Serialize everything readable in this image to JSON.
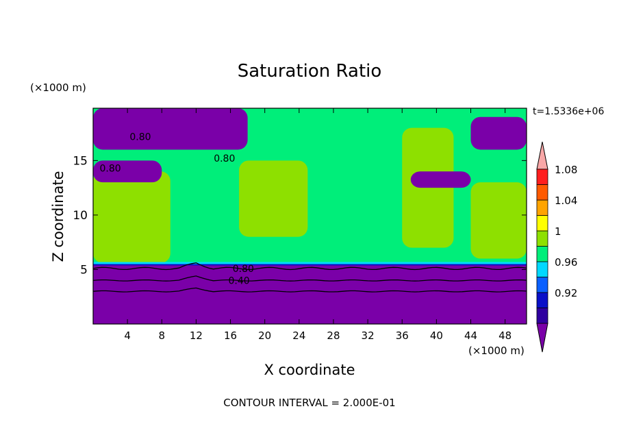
{
  "chart_data": {
    "type": "heatmap",
    "title": "Saturation Ratio",
    "xlabel": "X coordinate",
    "ylabel": "Z coordinate",
    "x_unit": "(×1000 m)",
    "y_unit": "(×1000 m)",
    "time_label": "t=1.5336e+06",
    "footer": "CONTOUR INTERVAL = 2.000E-01",
    "xlim": [
      0,
      50.5
    ],
    "ylim": [
      0,
      19.8
    ],
    "x_ticks": [
      4,
      8,
      12,
      16,
      20,
      24,
      28,
      32,
      36,
      40,
      44,
      48
    ],
    "y_ticks": [
      5,
      10,
      15
    ],
    "contour_labels": [
      {
        "text": "0.80",
        "x": 17.5,
        "y": 5.1
      },
      {
        "text": "0.40",
        "x": 17.0,
        "y": 4.0
      },
      {
        "text": "0.80",
        "x": 5.5,
        "y": 17.2
      },
      {
        "text": "0.80",
        "x": 15.3,
        "y": 15.2
      },
      {
        "text": "0.80",
        "x": 2.0,
        "y": 14.3
      }
    ],
    "colorbar": {
      "bins": [
        {
          "color": "#7a00a8"
        },
        {
          "color": "#2f00a0"
        },
        {
          "color": "#0a10c8",
          "label": "0.92"
        },
        {
          "color": "#0a60ff"
        },
        {
          "color": "#00d8ff",
          "label": "0.96"
        },
        {
          "color": "#00ee7a"
        },
        {
          "color": "#8ee000",
          "label": "1"
        },
        {
          "color": "#ffff00"
        },
        {
          "color": "#ffa400",
          "label": "1.04"
        },
        {
          "color": "#ff5a00"
        },
        {
          "color": "#ff1e1e",
          "label": "1.08"
        },
        {
          "color": "#f8a7a7"
        }
      ]
    },
    "regions": [
      {
        "level": "<0.90",
        "color": "#7a00a8",
        "x": [
          0,
          50.5
        ],
        "y": [
          0,
          5.5
        ]
      },
      {
        "level": "0.98-1.00",
        "color": "#00ee7a",
        "x": [
          0,
          50.5
        ],
        "y": [
          5.5,
          19.8
        ]
      },
      {
        "level": "1.00-1.02",
        "color": "#8ee000",
        "x": [
          0,
          9
        ],
        "y": [
          5.6,
          14
        ]
      },
      {
        "level": "1.00-1.02",
        "color": "#8ee000",
        "x": [
          17,
          25
        ],
        "y": [
          8,
          15
        ]
      },
      {
        "level": "1.00-1.02",
        "color": "#8ee000",
        "x": [
          36,
          42
        ],
        "y": [
          7,
          18
        ]
      },
      {
        "level": "1.00-1.02",
        "color": "#8ee000",
        "x": [
          44,
          50.5
        ],
        "y": [
          6,
          13
        ]
      },
      {
        "level": "<0.90",
        "color": "#7a00a8",
        "x": [
          0,
          18
        ],
        "y": [
          16,
          19.8
        ]
      },
      {
        "level": "<0.90",
        "color": "#7a00a8",
        "x": [
          0,
          8
        ],
        "y": [
          13,
          15
        ]
      },
      {
        "level": "<0.90",
        "color": "#7a00a8",
        "x": [
          37,
          44
        ],
        "y": [
          12.5,
          14
        ]
      },
      {
        "level": "<0.90",
        "color": "#7a00a8",
        "x": [
          44,
          50.5
        ],
        "y": [
          16,
          19
        ]
      }
    ]
  }
}
